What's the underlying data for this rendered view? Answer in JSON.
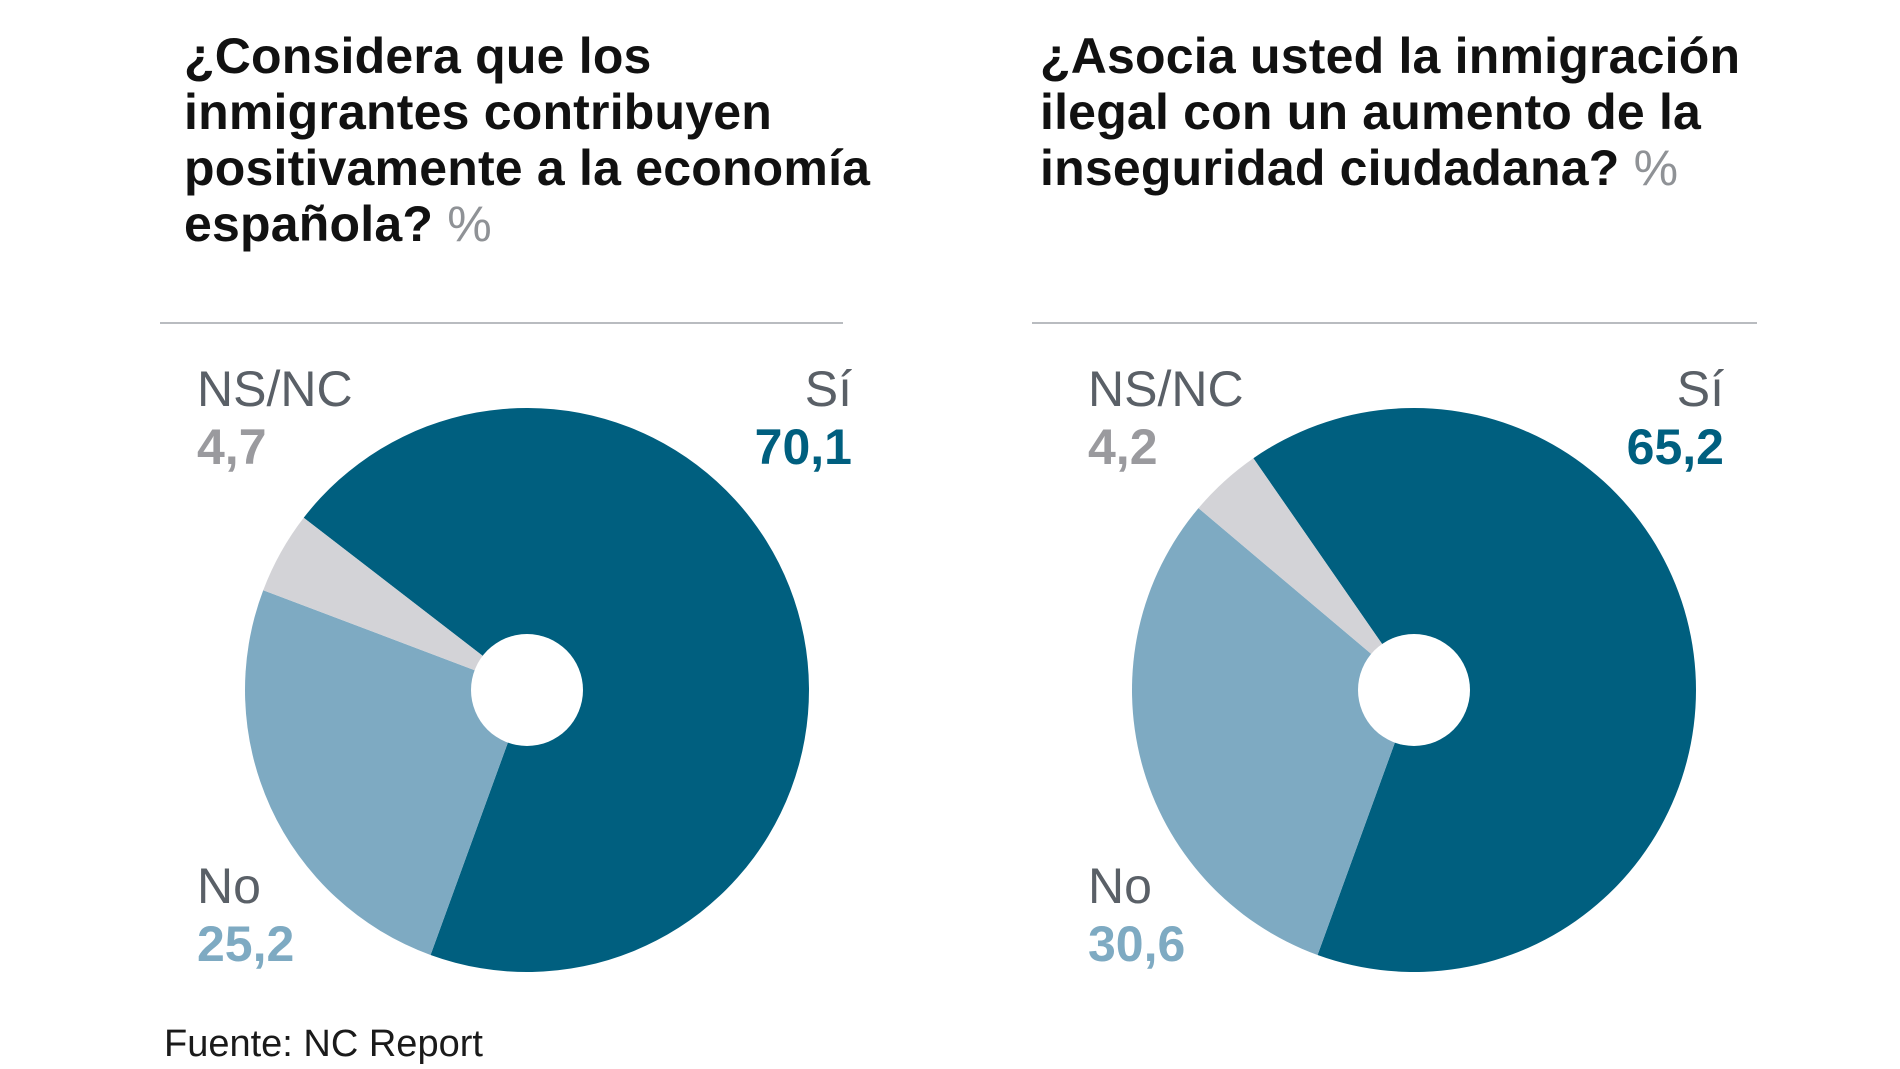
{
  "chart_data": [
    {
      "type": "pie",
      "title": "¿Considera que los inmigrantes contribuyen positivamente a la economía española?",
      "unit": "%",
      "slices": [
        {
          "label": "Sí",
          "value": 70.1,
          "value_text": "70,1",
          "color": "#005f7f"
        },
        {
          "label": "No",
          "value": 25.2,
          "value_text": "25,2",
          "color": "#7eaac2"
        },
        {
          "label": "NS/NC",
          "value": 4.7,
          "value_text": "4,7",
          "color": "#d3d3d7"
        }
      ]
    },
    {
      "type": "pie",
      "title": "¿Asocia usted la inmigración ilegal con un aumento de la inseguridad ciudadana?",
      "unit": "%",
      "slices": [
        {
          "label": "Sí",
          "value": 65.2,
          "value_text": "65,2",
          "color": "#005f7f"
        },
        {
          "label": "No",
          "value": 30.6,
          "value_text": "30,6",
          "color": "#7eaac2"
        },
        {
          "label": "NS/NC",
          "value": 4.2,
          "value_text": "4,2",
          "color": "#d3d3d7"
        }
      ]
    }
  ],
  "source": "Fuente: NC Report"
}
